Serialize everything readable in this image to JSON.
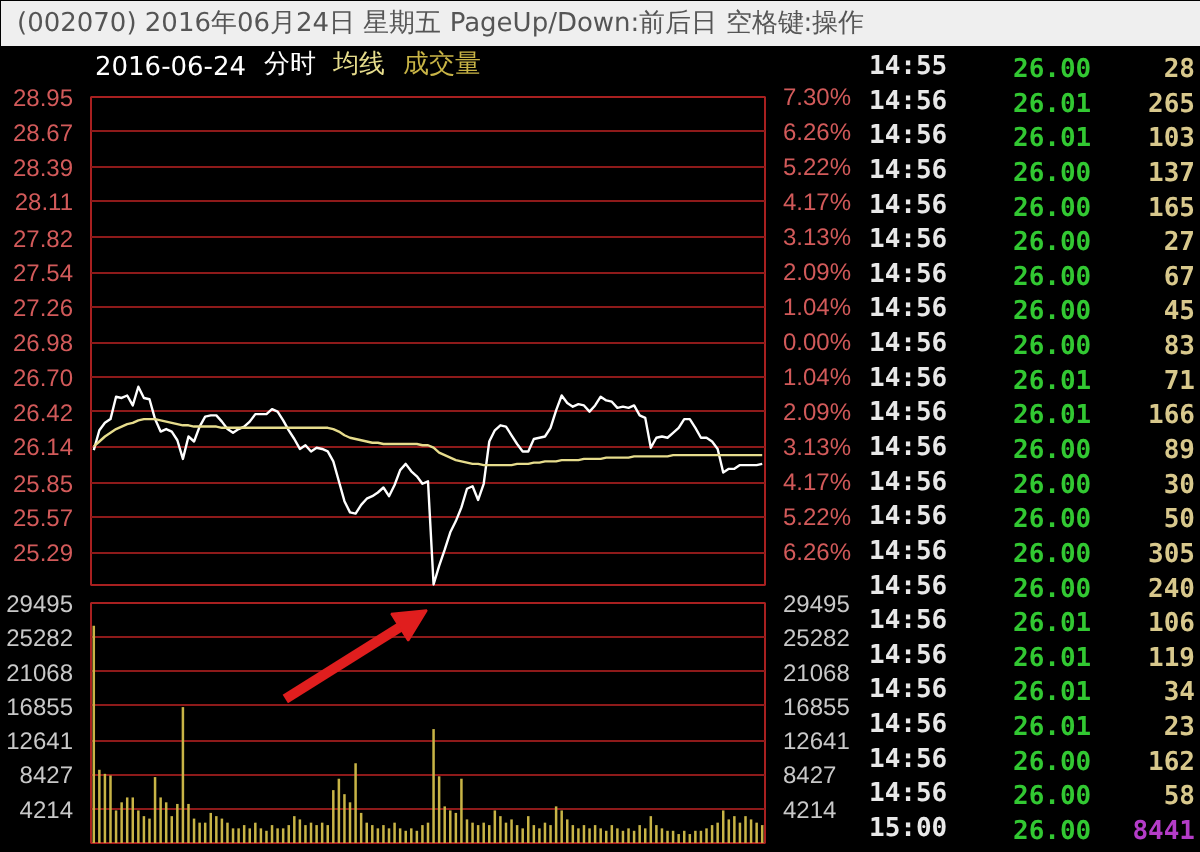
{
  "chart_data": [
    {
      "type": "line",
      "title": "(002070) 2016年06月24日 星期五 PageUp/Down:前后日 空格键:操作",
      "subtitle": "2016-06-24",
      "categories": [
        null,
        null,
        null,
        null,
        null,
        null,
        null,
        null,
        null,
        null,
        null,
        null,
        null,
        null,
        null,
        null,
        null,
        null,
        null,
        null,
        null,
        null,
        null,
        null,
        null,
        null,
        null,
        null,
        null,
        null,
        null,
        null,
        null,
        null,
        null,
        null,
        null,
        null,
        null,
        null,
        null,
        null,
        null,
        null,
        null,
        null,
        null,
        null,
        null,
        null,
        null,
        null,
        null,
        null,
        null,
        null,
        null,
        null,
        null,
        null,
        null,
        null,
        null,
        null,
        null,
        null,
        null,
        null,
        null,
        null,
        null,
        null,
        null,
        null,
        null,
        null,
        null,
        null,
        null,
        null,
        null,
        null,
        null,
        null,
        null,
        null,
        null,
        null,
        null,
        null,
        null,
        null,
        null,
        null,
        null,
        null,
        null,
        null,
        null,
        null,
        null,
        null,
        null,
        null,
        null,
        null,
        null,
        null,
        null,
        null,
        null,
        null,
        null,
        null,
        null,
        null,
        null,
        null,
        null,
        null,
        null
      ],
      "series": [
        {
          "name": "分时",
          "color": "#ffffff",
          "values": [
            26.11,
            26.27,
            26.33,
            26.36,
            26.54,
            26.53,
            26.55,
            26.47,
            26.62,
            26.53,
            26.52,
            26.36,
            26.26,
            26.28,
            26.26,
            26.19,
            26.04,
            26.22,
            26.18,
            26.3,
            26.38,
            26.39,
            26.39,
            26.34,
            26.28,
            26.25,
            26.28,
            26.3,
            26.34,
            26.4,
            26.4,
            26.4,
            26.44,
            26.42,
            26.35,
            26.27,
            26.2,
            26.12,
            26.15,
            26.1,
            26.13,
            26.12,
            26.1,
            26.02,
            25.86,
            25.7,
            25.61,
            25.6,
            25.67,
            25.72,
            25.74,
            25.77,
            25.81,
            25.74,
            25.83,
            25.95,
            26.0,
            25.94,
            25.9,
            25.84,
            25.86,
            25.03,
            25.18,
            25.31,
            25.45,
            25.54,
            25.65,
            25.8,
            25.82,
            25.71,
            25.84,
            26.18,
            26.27,
            26.31,
            26.3,
            26.23,
            26.16,
            26.1,
            26.1,
            26.2,
            26.21,
            26.22,
            26.29,
            26.43,
            26.55,
            26.49,
            26.46,
            26.48,
            26.47,
            26.42,
            26.47,
            26.54,
            26.51,
            26.5,
            26.45,
            26.46,
            26.45,
            26.47,
            26.39,
            26.37,
            26.13,
            26.21,
            26.22,
            26.21,
            26.25,
            26.29,
            26.36,
            26.36,
            26.29,
            26.21,
            26.21,
            26.18,
            26.12,
            25.93,
            25.96,
            25.96,
            25.99,
            25.99,
            25.99,
            25.99,
            26.0
          ]
        },
        {
          "name": "均线",
          "color": "#e6dc8c",
          "values": [
            26.14,
            26.18,
            26.22,
            26.25,
            26.28,
            26.3,
            26.32,
            26.33,
            26.35,
            26.36,
            26.36,
            26.36,
            26.35,
            26.34,
            26.33,
            26.32,
            26.31,
            26.31,
            26.3,
            26.3,
            26.3,
            26.3,
            26.3,
            26.29,
            26.29,
            26.29,
            26.29,
            26.29,
            26.29,
            26.29,
            26.29,
            26.29,
            26.29,
            26.29,
            26.29,
            26.29,
            26.29,
            26.29,
            26.29,
            26.29,
            26.29,
            26.29,
            26.29,
            26.28,
            26.26,
            26.23,
            26.21,
            26.2,
            26.19,
            26.18,
            26.17,
            26.17,
            26.16,
            26.16,
            26.16,
            26.16,
            26.16,
            26.16,
            26.16,
            26.15,
            26.15,
            26.13,
            26.09,
            26.07,
            26.05,
            26.03,
            26.02,
            26.01,
            26.0,
            26.0,
            25.99,
            25.99,
            25.99,
            25.99,
            25.99,
            25.99,
            26.0,
            26.0,
            26.0,
            26.01,
            26.01,
            26.02,
            26.02,
            26.02,
            26.03,
            26.03,
            26.03,
            26.03,
            26.04,
            26.04,
            26.04,
            26.04,
            26.05,
            26.05,
            26.05,
            26.05,
            26.05,
            26.06,
            26.06,
            26.06,
            26.06,
            26.06,
            26.06,
            26.06,
            26.07,
            26.07,
            26.07,
            26.07,
            26.07,
            26.07,
            26.07,
            26.07,
            26.07,
            26.07,
            26.07,
            26.07,
            26.07,
            26.07,
            26.07,
            26.07,
            26.07
          ]
        }
      ],
      "ylim": [
        25.01,
        28.95
      ],
      "yticks": [
        28.95,
        28.67,
        28.39,
        28.11,
        27.82,
        27.54,
        27.26,
        26.98,
        {
          "value": 26.7,
          "label": "26.70"
        },
        26.42,
        26.14,
        25.85,
        25.57,
        25.29
      ],
      "y2lim": [
        -7.3,
        7.3
      ],
      "y2ticks": [
        {
          "value": 7.3,
          "label": "7.30%"
        },
        {
          "value": 6.26,
          "label": "6.26%"
        },
        {
          "value": 5.22,
          "label": "5.22%"
        },
        {
          "value": 4.17,
          "label": "4.17%"
        },
        {
          "value": 3.13,
          "label": "3.13%"
        },
        {
          "value": 2.09,
          "label": "2.09%"
        },
        {
          "value": 1.04,
          "label": "1.04%"
        },
        {
          "value": 0,
          "label": "0.00%"
        },
        {
          "value": -1.04,
          "label": "1.04%"
        },
        {
          "value": -2.09,
          "label": "2.09%"
        },
        {
          "value": -3.13,
          "label": "3.13%"
        },
        {
          "value": -4.17,
          "label": "4.17%"
        },
        {
          "value": -5.22,
          "label": "5.22%"
        },
        {
          "value": -6.26,
          "label": "6.26%"
        }
      ],
      "grid": "y",
      "tick_labels": "y"
    },
    {
      "type": "bar",
      "categories": [
        null,
        null,
        null,
        null,
        null,
        null,
        null,
        null,
        null,
        null,
        null,
        null,
        null,
        null,
        null,
        null,
        null,
        null,
        null,
        null,
        null,
        null,
        null,
        null,
        null,
        null,
        null,
        null,
        null,
        null,
        null,
        null,
        null,
        null,
        null,
        null,
        null,
        null,
        null,
        null,
        null,
        null,
        null,
        null,
        null,
        null,
        null,
        null,
        null,
        null,
        null,
        null,
        null,
        null,
        null,
        null,
        null,
        null,
        null,
        null,
        null,
        null,
        null,
        null,
        null,
        null,
        null,
        null,
        null,
        null,
        null,
        null,
        null,
        null,
        null,
        null,
        null,
        null,
        null,
        null,
        null,
        null,
        null,
        null,
        null,
        null,
        null,
        null,
        null,
        null,
        null,
        null,
        null,
        null,
        null,
        null,
        null,
        null,
        null,
        null,
        null,
        null,
        null,
        null,
        null,
        null,
        null,
        null,
        null,
        null,
        null,
        null,
        null,
        null,
        null,
        null,
        null,
        null,
        null,
        null,
        null
      ],
      "series": [
        {
          "name": "成交量",
          "color": "#c8b446",
          "values": [
            26700,
            9000,
            8500,
            8300,
            4000,
            5000,
            5600,
            5600,
            4000,
            3300,
            3000,
            8100,
            5600,
            5000,
            3300,
            4800,
            16700,
            4800,
            3000,
            2500,
            2500,
            3700,
            3300,
            3000,
            2500,
            1800,
            1800,
            2200,
            1800,
            2500,
            1800,
            1500,
            2200,
            1800,
            1800,
            2200,
            3300,
            2900,
            2200,
            2500,
            2200,
            2500,
            2200,
            6500,
            7900,
            6000,
            5000,
            9800,
            3700,
            2500,
            2200,
            1800,
            2200,
            1800,
            2500,
            1800,
            1500,
            1800,
            1500,
            2200,
            2500,
            14000,
            8200,
            4500,
            4000,
            3700,
            7900,
            2900,
            2500,
            2200,
            2500,
            2200,
            4000,
            3300,
            2500,
            2900,
            2200,
            1800,
            3300,
            2200,
            1800,
            2500,
            2200,
            4500,
            4000,
            2900,
            2200,
            1800,
            2200,
            1800,
            2200,
            1800,
            1500,
            2200,
            1800,
            1500,
            1800,
            1500,
            2200,
            1800,
            3300,
            2200,
            1800,
            1500,
            1500,
            1100,
            1500,
            1100,
            1500,
            1500,
            1800,
            2200,
            2500,
            4000,
            2900,
            3300,
            2500,
            3300,
            2900,
            2500,
            2200
          ]
        }
      ],
      "ylim": [
        0,
        29495
      ],
      "yticks": [
        4214,
        8427,
        12641,
        16855,
        21068,
        25282,
        29495
      ],
      "y2lim": [
        0,
        29495
      ],
      "y2ticks": [
        4214,
        8427,
        12641,
        16855,
        21068,
        25282,
        29495
      ],
      "grid": "y",
      "tick_labels": "y"
    },
    {
      "type": "other",
      "categories": [
        "14:55",
        "14:56",
        "14:56",
        "14:56",
        "14:56",
        "14:56",
        "14:56",
        "14:56",
        "14:56",
        "14:56",
        "14:56",
        "14:56",
        "14:56",
        "14:56",
        "14:56",
        "14:56",
        "14:56",
        "14:56",
        "14:56",
        "14:56",
        "14:56",
        "14:56",
        "15:00"
      ],
      "series": [
        {
          "color": "#32c832",
          "values": [
            26.0,
            26.01,
            26.01,
            26.0,
            26.0,
            26.0,
            26.0,
            26.0,
            26.0,
            26.01,
            26.01,
            26.0,
            26.0,
            26.0,
            26.0,
            26.0,
            26.01,
            26.01,
            26.01,
            26.01,
            26.0,
            26.0,
            26.0
          ],
          "value_labels": [
            "26.00",
            "26.01",
            "26.01",
            "26.00",
            "26.00",
            "26.00",
            "26.00",
            "26.00",
            "26.00",
            "26.01",
            "26.01",
            "26.00",
            "26.00",
            "26.00",
            "26.00",
            "26.00",
            "26.01",
            "26.01",
            "26.01",
            "26.01",
            "26.00",
            "26.00",
            "26.00"
          ]
        },
        {
          "colors": [
            "#d8c88c",
            "#d8c88c",
            "#d8c88c",
            "#d8c88c",
            "#d8c88c",
            "#d8c88c",
            "#d8c88c",
            "#d8c88c",
            "#d8c88c",
            "#d8c88c",
            "#d8c88c",
            "#d8c88c",
            "#d8c88c",
            "#d8c88c",
            "#d8c88c",
            "#d8c88c",
            "#d8c88c",
            "#d8c88c",
            "#d8c88c",
            "#d8c88c",
            "#d8c88c",
            "#d8c88c",
            "#b43cc8"
          ],
          "values": [
            28,
            265,
            103,
            137,
            165,
            27,
            67,
            45,
            83,
            71,
            166,
            89,
            30,
            50,
            305,
            240,
            106,
            119,
            34,
            23,
            162,
            58,
            8441
          ],
          "value_labels": [
            "28",
            "265",
            "103",
            "137",
            "165",
            "27",
            "67",
            "45",
            "83",
            "71",
            "166",
            "89",
            "30",
            "50",
            "305",
            "240",
            "106",
            "119",
            "34",
            "23",
            "162",
            "58",
            "8441"
          ]
        }
      ]
    }
  ]
}
